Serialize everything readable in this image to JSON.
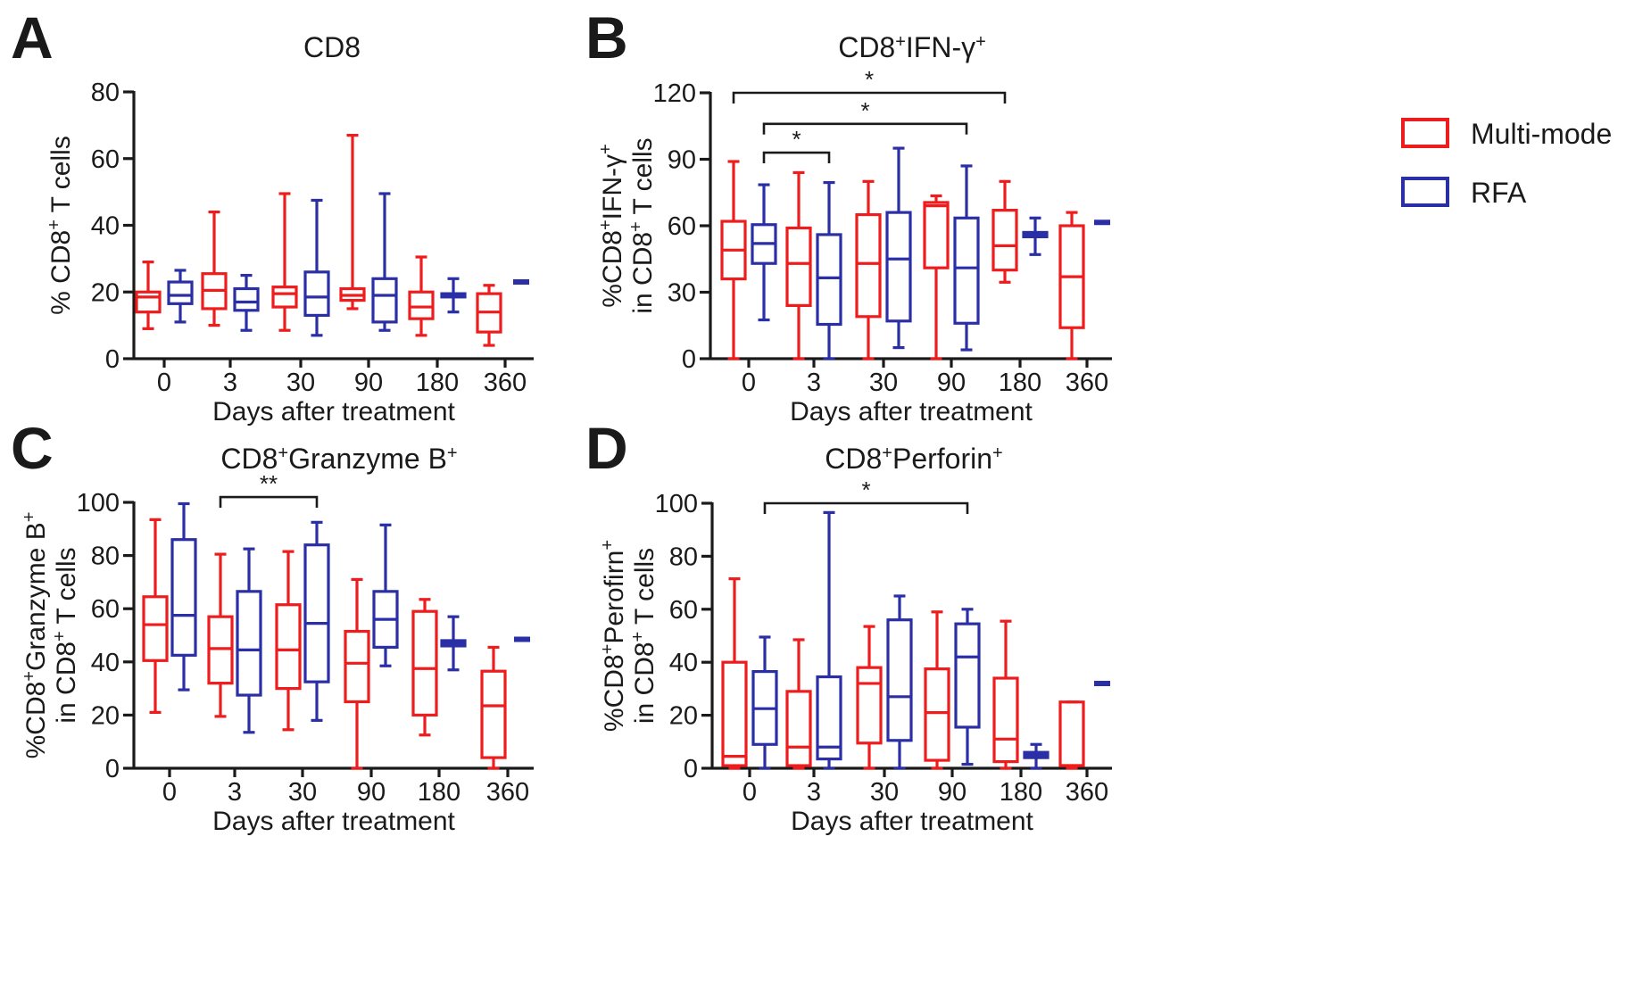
{
  "legend": {
    "items": [
      {
        "label": "Multi-mode",
        "color": "#ee1c1c"
      },
      {
        "label": "RFA",
        "color": "#2b2fa6"
      }
    ]
  },
  "colors": {
    "multi": "#ee1c1c",
    "rfa": "#2b2fa6",
    "axis": "#1a1a1a"
  },
  "chart_data": [
    {
      "id": "A",
      "panel_label": "A",
      "type": "box",
      "title": {
        "main": "CD8",
        "sup": ""
      },
      "title_parts": [
        {
          "t": "CD8",
          "sup": false
        }
      ],
      "ylabel": [
        [
          {
            "t": "% CD8",
            "sup": false
          },
          {
            "t": "+",
            "sup": true
          },
          {
            "t": " T cells",
            "sup": false
          }
        ]
      ],
      "xlabel": "Days after treatment",
      "ylim": [
        0,
        80
      ],
      "yticks": [
        0,
        20,
        40,
        60,
        80
      ],
      "categories": [
        "0",
        "3",
        "30",
        "90",
        "180",
        "360"
      ],
      "series": [
        {
          "name": "Multi-mode",
          "boxes": [
            {
              "min": 9,
              "q1": 14,
              "median": 18.5,
              "q3": 20,
              "max": 29
            },
            {
              "min": 10,
              "q1": 15,
              "median": 20.5,
              "q3": 25.5,
              "max": 44
            },
            {
              "min": 8.5,
              "q1": 15.5,
              "median": 19.5,
              "q3": 21.5,
              "max": 49.5
            },
            {
              "min": 15,
              "q1": 17.5,
              "median": 19,
              "q3": 21,
              "max": 67
            },
            {
              "min": 7,
              "q1": 12,
              "median": 15.5,
              "q3": 20,
              "max": 30.5
            },
            {
              "min": 4,
              "q1": 8,
              "median": 14,
              "q3": 19.5,
              "max": 22
            }
          ]
        },
        {
          "name": "RFA",
          "boxes": [
            {
              "min": 11,
              "q1": 16.5,
              "median": 19,
              "q3": 23,
              "max": 26.5
            },
            {
              "min": 8.5,
              "q1": 14.5,
              "median": 17,
              "q3": 21,
              "max": 25
            },
            {
              "min": 7,
              "q1": 13,
              "median": 18.5,
              "q3": 26,
              "max": 47.5
            },
            {
              "min": 8.5,
              "q1": 11,
              "median": 19,
              "q3": 24,
              "max": 49.5
            },
            {
              "min": 14,
              "q1": 18.5,
              "median": 19,
              "q3": 19.5,
              "max": 24
            },
            {
              "min": 23,
              "q1": 23,
              "median": 23,
              "q3": 23,
              "max": 23
            }
          ]
        }
      ],
      "significance": []
    },
    {
      "id": "B",
      "panel_label": "B",
      "type": "box",
      "title_parts": [
        {
          "t": "CD8",
          "sup": false
        },
        {
          "t": "+",
          "sup": true
        },
        {
          "t": "IFN-γ",
          "sup": false
        },
        {
          "t": "+",
          "sup": true
        }
      ],
      "ylabel": [
        [
          {
            "t": "%CD8",
            "sup": false
          },
          {
            "t": "+",
            "sup": true
          },
          {
            "t": "IFN-γ",
            "sup": false
          },
          {
            "t": "+",
            "sup": true
          }
        ],
        [
          {
            "t": "in CD8",
            "sup": false
          },
          {
            "t": "+",
            "sup": true
          },
          {
            "t": " T cells",
            "sup": false
          }
        ]
      ],
      "xlabel": "Days after treatment",
      "ylim": [
        0,
        120
      ],
      "yticks": [
        0,
        30,
        60,
        90,
        120
      ],
      "categories": [
        "0",
        "3",
        "30",
        "90",
        "180",
        "360"
      ],
      "series": [
        {
          "name": "Multi-mode",
          "boxes": [
            {
              "min": 0,
              "q1": 36,
              "median": 49,
              "q3": 62,
              "max": 89
            },
            {
              "min": 0,
              "q1": 24,
              "median": 43,
              "q3": 59,
              "max": 84
            },
            {
              "min": 0,
              "q1": 19,
              "median": 43,
              "q3": 65,
              "max": 80
            },
            {
              "min": 0,
              "q1": 41,
              "median": 69,
              "q3": 70.5,
              "max": 73.5
            },
            {
              "min": 34.5,
              "q1": 40,
              "median": 51,
              "q3": 67,
              "max": 80
            },
            {
              "min": 0,
              "q1": 14,
              "median": 37,
              "q3": 60,
              "max": 66
            }
          ]
        },
        {
          "name": "RFA",
          "boxes": [
            {
              "min": 17.5,
              "q1": 43,
              "median": 52,
              "q3": 60.5,
              "max": 78.5
            },
            {
              "min": 0,
              "q1": 15.5,
              "median": 36.5,
              "q3": 56,
              "max": 79.5
            },
            {
              "min": 5,
              "q1": 17,
              "median": 45,
              "q3": 66,
              "max": 95
            },
            {
              "min": 4,
              "q1": 16,
              "median": 41,
              "q3": 63.5,
              "max": 87
            },
            {
              "min": 47,
              "q1": 55,
              "median": 56,
              "q3": 57,
              "max": 63.5
            },
            {
              "min": 61.5,
              "q1": 61.5,
              "median": 61.5,
              "q3": 61.5,
              "max": 61.5
            }
          ]
        }
      ],
      "significance": [
        {
          "from": {
            "cat": 0,
            "series": 0
          },
          "to": {
            "cat": 4,
            "series": 0
          },
          "level": 120,
          "label": "*"
        },
        {
          "from": {
            "cat": 0,
            "series": 1
          },
          "to": {
            "cat": 3,
            "series": 1
          },
          "level": 106,
          "label": "*"
        },
        {
          "from": {
            "cat": 0,
            "series": 1
          },
          "to": {
            "cat": 1,
            "series": 1
          },
          "level": 93,
          "label": "*"
        }
      ]
    },
    {
      "id": "C",
      "panel_label": "C",
      "type": "box",
      "title_parts": [
        {
          "t": "CD8",
          "sup": false
        },
        {
          "t": "+",
          "sup": true
        },
        {
          "t": "Granzyme B",
          "sup": false
        },
        {
          "t": "+",
          "sup": true
        }
      ],
      "ylabel": [
        [
          {
            "t": "%CD8",
            "sup": false
          },
          {
            "t": "+",
            "sup": true
          },
          {
            "t": "Granzyme B",
            "sup": false
          },
          {
            "t": "+",
            "sup": true
          }
        ],
        [
          {
            "t": "in CD8",
            "sup": false
          },
          {
            "t": "+",
            "sup": true
          },
          {
            "t": " T cells",
            "sup": false
          }
        ]
      ],
      "xlabel": "Days after treatment",
      "ylim": [
        0,
        100
      ],
      "yticks": [
        0,
        20,
        40,
        60,
        80,
        100
      ],
      "categories": [
        "0",
        "3",
        "30",
        "90",
        "180",
        "360"
      ],
      "series": [
        {
          "name": "Multi-mode",
          "boxes": [
            {
              "min": 21,
              "q1": 40.5,
              "median": 54,
              "q3": 64.5,
              "max": 93.5
            },
            {
              "min": 19.5,
              "q1": 32,
              "median": 45,
              "q3": 57,
              "max": 80.5
            },
            {
              "min": 14.5,
              "q1": 30,
              "median": 44.5,
              "q3": 61.5,
              "max": 81.5
            },
            {
              "min": 0,
              "q1": 25,
              "median": 39.5,
              "q3": 51.5,
              "max": 71
            },
            {
              "min": 12.5,
              "q1": 20,
              "median": 37.5,
              "q3": 59,
              "max": 63.5
            },
            {
              "min": 0,
              "q1": 4,
              "median": 23.5,
              "q3": 36.5,
              "max": 45.5
            }
          ]
        },
        {
          "name": "RFA",
          "boxes": [
            {
              "min": 29.5,
              "q1": 42.5,
              "median": 57.5,
              "q3": 86,
              "max": 99.5
            },
            {
              "min": 13.5,
              "q1": 27.5,
              "median": 44.5,
              "q3": 66.5,
              "max": 82.5
            },
            {
              "min": 18,
              "q1": 32.5,
              "median": 54.5,
              "q3": 84,
              "max": 92.5
            },
            {
              "min": 38.5,
              "q1": 45.5,
              "median": 56,
              "q3": 66.5,
              "max": 91.5
            },
            {
              "min": 37,
              "q1": 46,
              "median": 47,
              "q3": 48,
              "max": 57
            },
            {
              "min": 48.5,
              "q1": 48.5,
              "median": 48.5,
              "q3": 48.5,
              "max": 48.5
            }
          ]
        }
      ],
      "significance": [
        {
          "from": {
            "cat": 1,
            "series": 0
          },
          "to": {
            "cat": 2,
            "series": 1
          },
          "level": 102,
          "label": "**"
        }
      ]
    },
    {
      "id": "D",
      "panel_label": "D",
      "type": "box",
      "title_parts": [
        {
          "t": "CD8",
          "sup": false
        },
        {
          "t": "+",
          "sup": true
        },
        {
          "t": "Perforin",
          "sup": false
        },
        {
          "t": "+",
          "sup": true
        }
      ],
      "ylabel": [
        [
          {
            "t": "%CD8",
            "sup": false
          },
          {
            "t": "+",
            "sup": true
          },
          {
            "t": "Perofirn",
            "sup": false
          },
          {
            "t": "+",
            "sup": true
          }
        ],
        [
          {
            "t": "in CD8",
            "sup": false
          },
          {
            "t": "+",
            "sup": true
          },
          {
            "t": " T cells",
            "sup": false
          }
        ]
      ],
      "xlabel": "Days after treatment",
      "ylim": [
        0,
        100
      ],
      "yticks": [
        0,
        20,
        40,
        60,
        80,
        100
      ],
      "categories": [
        "0",
        "3",
        "30",
        "90",
        "180",
        "360"
      ],
      "series": [
        {
          "name": "Multi-mode",
          "boxes": [
            {
              "min": 0,
              "q1": 1,
              "median": 4.5,
              "q3": 40,
              "max": 71.5
            },
            {
              "min": 0,
              "q1": 1,
              "median": 8,
              "q3": 29,
              "max": 48.5
            },
            {
              "min": 0,
              "q1": 9.5,
              "median": 32,
              "q3": 38,
              "max": 53.5
            },
            {
              "min": 0,
              "q1": 3,
              "median": 21,
              "q3": 37.5,
              "max": 59
            },
            {
              "min": 0,
              "q1": 2.5,
              "median": 11,
              "q3": 34,
              "max": 55.5
            },
            {
              "min": 0,
              "q1": 1,
              "median": 1,
              "q3": 25,
              "max": 25
            }
          ]
        },
        {
          "name": "RFA",
          "boxes": [
            {
              "min": 0,
              "q1": 9,
              "median": 22.5,
              "q3": 36.5,
              "max": 49.5
            },
            {
              "min": 0,
              "q1": 3.5,
              "median": 8,
              "q3": 34.5,
              "max": 96.5
            },
            {
              "min": 0,
              "q1": 10.5,
              "median": 27,
              "q3": 56,
              "max": 65
            },
            {
              "min": 1.5,
              "q1": 15.5,
              "median": 42,
              "q3": 54.5,
              "max": 60
            },
            {
              "min": 0,
              "q1": 4,
              "median": 5,
              "q3": 6,
              "max": 9
            },
            {
              "min": 32,
              "q1": 32,
              "median": 32,
              "q3": 32,
              "max": 32
            }
          ]
        }
      ],
      "significance": [
        {
          "from": {
            "cat": 0,
            "series": 1
          },
          "to": {
            "cat": 3,
            "series": 1
          },
          "level": 100,
          "label": "*"
        }
      ]
    }
  ]
}
